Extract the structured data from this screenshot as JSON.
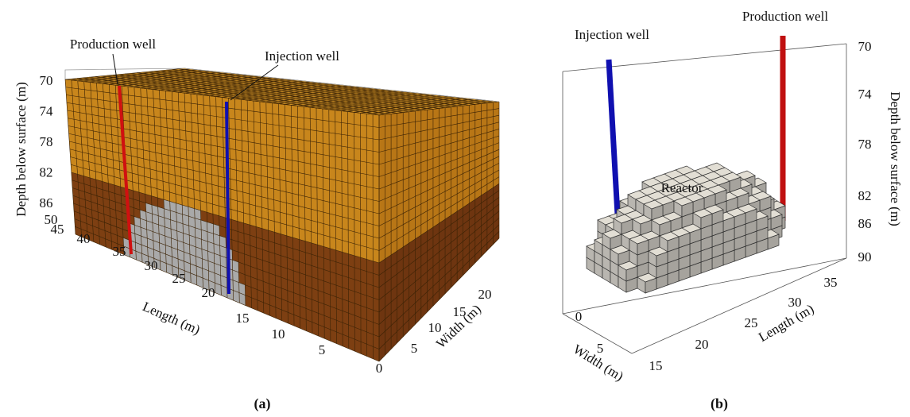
{
  "panel_a": {
    "label": "(a)",
    "annotations": {
      "production_well": "Production well",
      "injection_well": "Injection well"
    },
    "axes": {
      "depth": {
        "title": "Depth below surface (m)",
        "ticks": [
          70,
          74,
          78,
          82,
          86
        ]
      },
      "length": {
        "title": "Length (m)",
        "ticks": [
          50,
          45,
          40,
          35,
          30,
          25,
          20,
          15,
          10,
          5,
          0
        ]
      },
      "width": {
        "title": "Width (m)",
        "ticks": [
          5,
          10,
          15,
          20
        ]
      }
    }
  },
  "panel_b": {
    "label": "(b)",
    "reactor": "Reactor",
    "annotations": {
      "injection_well": "Injection well",
      "production_well": "Production well"
    },
    "axes": {
      "depth": {
        "title": "Depth below surface (m)",
        "ticks": [
          70,
          74,
          78,
          82,
          86,
          90
        ]
      },
      "length": {
        "title": "Length (m)",
        "ticks": [
          20,
          25,
          30,
          35
        ]
      },
      "width": {
        "title": "Width (m)",
        "ticks": [
          0,
          5,
          15
        ]
      }
    }
  }
}
